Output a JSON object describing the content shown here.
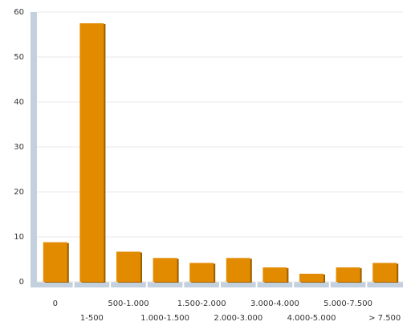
{
  "chart_data": {
    "type": "bar",
    "categories": [
      "0",
      "1-500",
      "500-1.000",
      "1.000-1.500",
      "1.500-2.000",
      "2.000-3.000",
      "3.000-4.000",
      "4.000-5.000",
      "5.000-7.500",
      "> 7.500"
    ],
    "values": [
      8.8,
      57.5,
      6.7,
      5.3,
      4.2,
      5.3,
      3.2,
      1.8,
      3.2,
      4.2
    ],
    "color": "#e38b00",
    "ylim": [
      0,
      60
    ],
    "yticks": [
      0,
      10,
      20,
      30,
      40,
      50,
      60
    ],
    "grid": true
  }
}
